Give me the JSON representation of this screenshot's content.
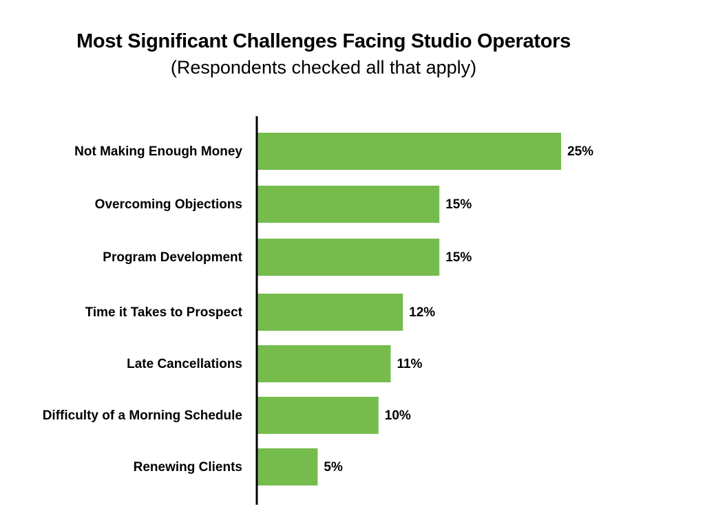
{
  "chart_data": {
    "type": "bar",
    "orientation": "horizontal",
    "title": "Most Significant Challenges Facing Studio Operators",
    "subtitle": "(Respondents checked all that apply)",
    "categories": [
      "Not Making Enough Money",
      "Overcoming Objections",
      "Program Development",
      "Time it Takes to Prospect",
      "Late Cancellations",
      "Difficulty of a Morning Schedule",
      "Renewing Clients"
    ],
    "values": [
      25,
      15,
      15,
      12,
      11,
      10,
      5
    ],
    "value_labels": [
      "25%",
      "15%",
      "15%",
      "12%",
      "11%",
      "10%",
      "5%"
    ],
    "unit": "%",
    "xlim": [
      0,
      25
    ],
    "bar_color": "#76bc4d",
    "axis_color": "#000000",
    "grid": false,
    "legend": "none"
  }
}
